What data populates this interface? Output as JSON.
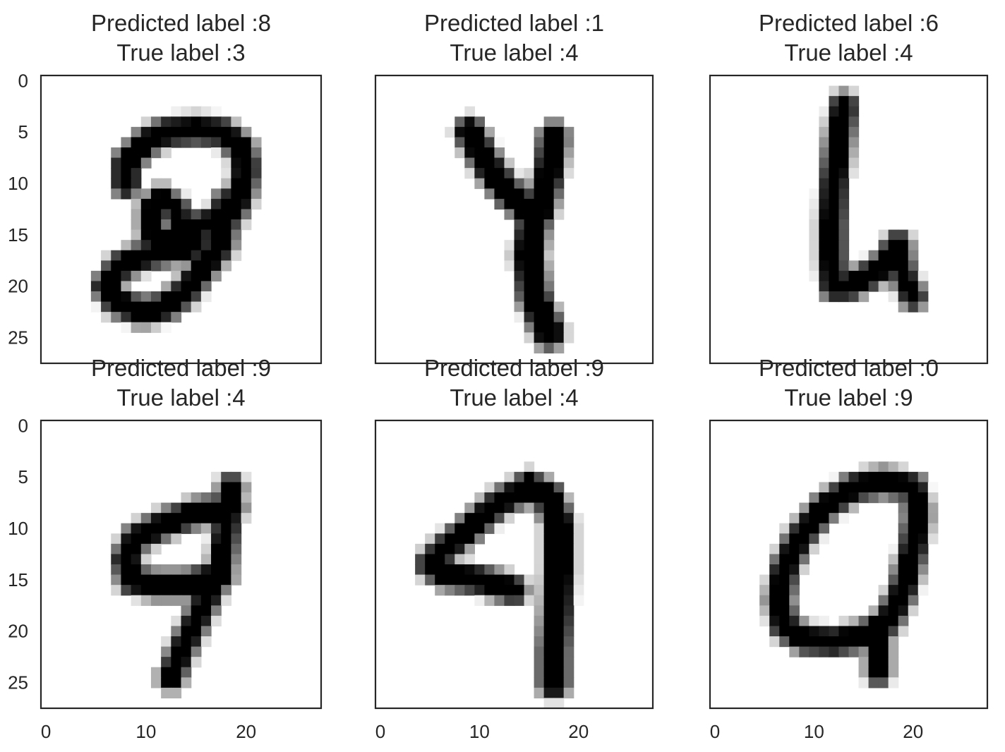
{
  "figure": {
    "background": "#ffffff",
    "frame_color": "#262626",
    "text_color": "#262626",
    "colormap": "gray_r"
  },
  "chart_data": [
    {
      "type": "heatmap",
      "row": 0,
      "col": 0,
      "title_lines": [
        "Predicted label :8",
        "True label :3"
      ],
      "xlim": [
        -0.5,
        27.5
      ],
      "ylim": [
        27.5,
        -0.5
      ],
      "xticks": [],
      "yticks": [
        0,
        5,
        10,
        15,
        20,
        25
      ],
      "grid": false,
      "strokes": [
        {
          "points": [
            [
              8,
              10
            ],
            [
              8,
              8
            ],
            [
              10,
              6
            ],
            [
              12,
              5
            ],
            [
              15,
              4.8
            ],
            [
              17.5,
              5
            ],
            [
              19.5,
              6.5
            ],
            [
              20,
              8.5
            ],
            [
              19.5,
              11
            ],
            [
              18.5,
              13
            ],
            [
              16,
              14
            ],
            [
              13.5,
              14.5
            ]
          ],
          "width": 1.6
        },
        {
          "points": [
            [
              13.5,
              14.5
            ],
            [
              13,
              12.5
            ],
            [
              11.5,
              11.5
            ],
            [
              10.5,
              12.5
            ],
            [
              10.5,
              14.5
            ],
            [
              12,
              15.5
            ],
            [
              14.5,
              15.5
            ]
          ],
          "width": 1.4
        },
        {
          "points": [
            [
              18,
              12
            ],
            [
              17.5,
              16
            ],
            [
              15.5,
              18.5
            ],
            [
              14,
              20.5
            ],
            [
              12,
              22
            ],
            [
              9.5,
              22.5
            ],
            [
              7,
              21.5
            ],
            [
              6,
              20
            ],
            [
              7.5,
              18
            ],
            [
              10,
              17
            ],
            [
              12.5,
              16.5
            ],
            [
              15,
              16
            ]
          ],
          "width": 1.6
        }
      ]
    },
    {
      "type": "heatmap",
      "row": 0,
      "col": 1,
      "title_lines": [
        "Predicted label :1",
        "True label :4"
      ],
      "xlim": [
        -0.5,
        27.5
      ],
      "ylim": [
        27.5,
        -0.5
      ],
      "xticks": [],
      "yticks": [],
      "grid": false,
      "strokes": [
        {
          "points": [
            [
              9,
              5
            ],
            [
              11,
              8.5
            ],
            [
              13,
              11
            ],
            [
              15.5,
              13
            ]
          ],
          "width": 1.9
        },
        {
          "points": [
            [
              17.5,
              5.5
            ],
            [
              17,
              9
            ],
            [
              16,
              13
            ]
          ],
          "width": 1.9
        },
        {
          "points": [
            [
              15.5,
              13
            ],
            [
              15,
              17
            ],
            [
              15.5,
              21
            ],
            [
              17,
              24.5
            ]
          ],
          "width": 2.1
        }
      ]
    },
    {
      "type": "heatmap",
      "row": 0,
      "col": 2,
      "title_lines": [
        "Predicted label :6",
        "True label :4"
      ],
      "xlim": [
        -0.5,
        27.5
      ],
      "ylim": [
        27.5,
        -0.5
      ],
      "xticks": [],
      "yticks": [],
      "grid": false,
      "strokes": [
        {
          "points": [
            [
              13,
              2.5
            ],
            [
              12.5,
              6
            ],
            [
              12,
              10
            ],
            [
              11.8,
              14
            ],
            [
              11.8,
              17.5
            ],
            [
              12,
              20
            ],
            [
              13.5,
              20
            ],
            [
              15.5,
              19
            ],
            [
              17,
              18
            ],
            [
              18.5,
              16
            ]
          ],
          "width": 1.6
        },
        {
          "points": [
            [
              18.5,
              16
            ],
            [
              19,
              19
            ],
            [
              20,
              21
            ]
          ],
          "width": 1.4
        }
      ]
    },
    {
      "type": "heatmap",
      "row": 1,
      "col": 0,
      "title_lines": [
        "Predicted label :9",
        "True label :4"
      ],
      "xlim": [
        -0.5,
        27.5
      ],
      "ylim": [
        27.5,
        -0.5
      ],
      "xticks": [
        0,
        10,
        20
      ],
      "yticks": [
        0,
        5,
        10,
        15,
        20,
        25
      ],
      "grid": false,
      "strokes": [
        {
          "points": [
            [
              18.5,
              8
            ],
            [
              15,
              8.5
            ],
            [
              12,
              9.5
            ],
            [
              9,
              11
            ],
            [
              8,
              13
            ],
            [
              8.5,
              15
            ],
            [
              11,
              15.5
            ],
            [
              14,
              15.5
            ],
            [
              17.5,
              14.5
            ]
          ],
          "width": 1.6
        },
        {
          "points": [
            [
              18.5,
              6
            ],
            [
              18,
              10
            ],
            [
              17.5,
              14
            ],
            [
              16,
              17
            ],
            [
              14.5,
              20
            ],
            [
              13.5,
              22
            ],
            [
              12.5,
              24.5
            ]
          ],
          "width": 1.5
        }
      ]
    },
    {
      "type": "heatmap",
      "row": 1,
      "col": 1,
      "title_lines": [
        "Predicted label :9",
        "True label :4"
      ],
      "xlim": [
        -0.5,
        27.5
      ],
      "ylim": [
        27.5,
        -0.5
      ],
      "xticks": [
        0,
        10,
        20
      ],
      "yticks": [],
      "grid": false,
      "strokes": [
        {
          "points": [
            [
              15,
              6
            ],
            [
              12,
              7.5
            ],
            [
              9,
              10
            ],
            [
              6.5,
              12
            ],
            [
              5,
              13.5
            ],
            [
              6.5,
              14.5
            ],
            [
              10,
              15
            ],
            [
              13.5,
              16
            ]
          ],
          "width": 1.6
        },
        {
          "points": [
            [
              15,
              6
            ],
            [
              17,
              7
            ],
            [
              18,
              9.5
            ],
            [
              18,
              14
            ],
            [
              17.8,
              18
            ],
            [
              17.5,
              22
            ],
            [
              17.5,
              25
            ]
          ],
          "width": 2.0
        }
      ]
    },
    {
      "type": "heatmap",
      "row": 1,
      "col": 2,
      "title_lines": [
        "Predicted label :0",
        "True label :9"
      ],
      "xlim": [
        -0.5,
        27.5
      ],
      "ylim": [
        27.5,
        -0.5
      ],
      "xticks": [
        0,
        10,
        20
      ],
      "yticks": [],
      "grid": false,
      "strokes": [
        {
          "points": [
            [
              17,
              5.5
            ],
            [
              14,
              6
            ],
            [
              11,
              8
            ],
            [
              8.5,
              11
            ],
            [
              7,
              14
            ],
            [
              6.5,
              17
            ],
            [
              7,
              19.5
            ],
            [
              9,
              20.8
            ],
            [
              12,
              21
            ],
            [
              15,
              20.5
            ],
            [
              17.5,
              19
            ],
            [
              19,
              16
            ],
            [
              20,
              12
            ],
            [
              20.5,
              8.5
            ],
            [
              20,
              6
            ],
            [
              17,
              5.5
            ]
          ],
          "width": 1.6
        },
        {
          "points": [
            [
              16.5,
              20
            ],
            [
              16.5,
              22.5
            ],
            [
              16.5,
              24
            ]
          ],
          "width": 1.4
        }
      ]
    }
  ]
}
